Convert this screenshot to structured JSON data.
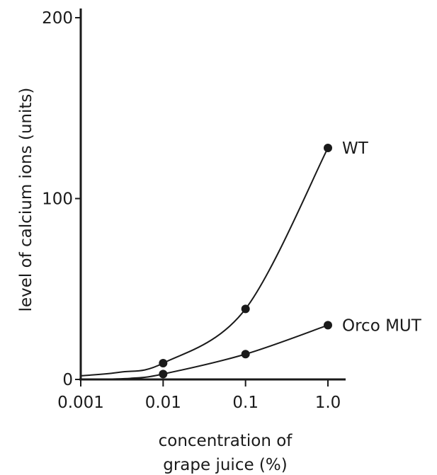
{
  "chart_data": {
    "type": "line",
    "xlabel_lines": [
      "concentration of",
      "grape juice (%)"
    ],
    "ylabel": "level of calcium ions (units)",
    "x_scale": "log",
    "xlim": [
      0.001,
      1.0
    ],
    "ylim": [
      0,
      200
    ],
    "x_ticks": [
      {
        "value": 0.001,
        "label": "0.001"
      },
      {
        "value": 0.01,
        "label": "0.01"
      },
      {
        "value": 0.1,
        "label": "0.1"
      },
      {
        "value": 1.0,
        "label": "1.0"
      }
    ],
    "y_ticks": [
      {
        "value": 0,
        "label": "0"
      },
      {
        "value": 100,
        "label": "100"
      },
      {
        "value": 200,
        "label": "200"
      }
    ],
    "grid": false,
    "series": [
      {
        "name": "WT",
        "points": [
          {
            "x": 0.01,
            "y": 9
          },
          {
            "x": 0.1,
            "y": 39
          },
          {
            "x": 1.0,
            "y": 128
          }
        ],
        "curve_start": {
          "x": 0.001,
          "y": 2
        }
      },
      {
        "name": "Orco MUT",
        "points": [
          {
            "x": 0.01,
            "y": 3
          },
          {
            "x": 0.1,
            "y": 14
          },
          {
            "x": 1.0,
            "y": 30
          }
        ],
        "curve_start": {
          "x": 0.002,
          "y": 0
        }
      }
    ]
  }
}
